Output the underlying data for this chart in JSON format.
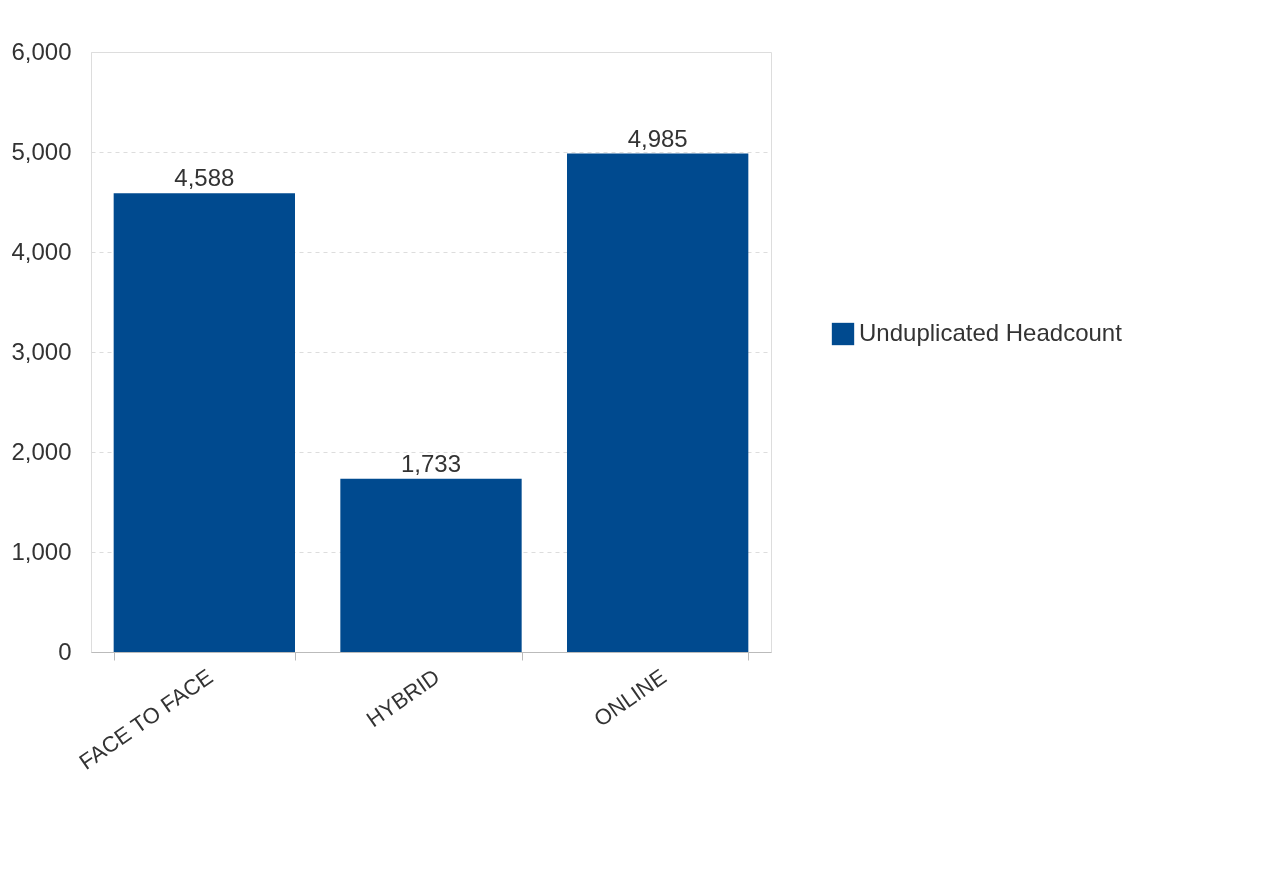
{
  "chart_data": {
    "type": "bar",
    "categories": [
      "FACE TO FACE",
      "HYBRID",
      "ONLINE"
    ],
    "series": [
      {
        "name": "Unduplicated Headcount",
        "color": "#004a8f",
        "values": [
          4588,
          1733,
          4985
        ],
        "value_labels": [
          "4,588",
          "1,733",
          "4,985"
        ]
      }
    ],
    "ylim": [
      0,
      6000
    ],
    "yticks": [
      0,
      {
        "value": 1000,
        "label": "1,000"
      },
      {
        "value": 2000,
        "label": "2,000"
      },
      {
        "value": 3000,
        "label": "3,000"
      },
      {
        "value": 4000,
        "label": "4,000"
      },
      {
        "value": 5000,
        "label": "5,000"
      },
      {
        "value": 6000,
        "label": "6,000"
      }
    ],
    "grid": "y",
    "legend": "right"
  }
}
